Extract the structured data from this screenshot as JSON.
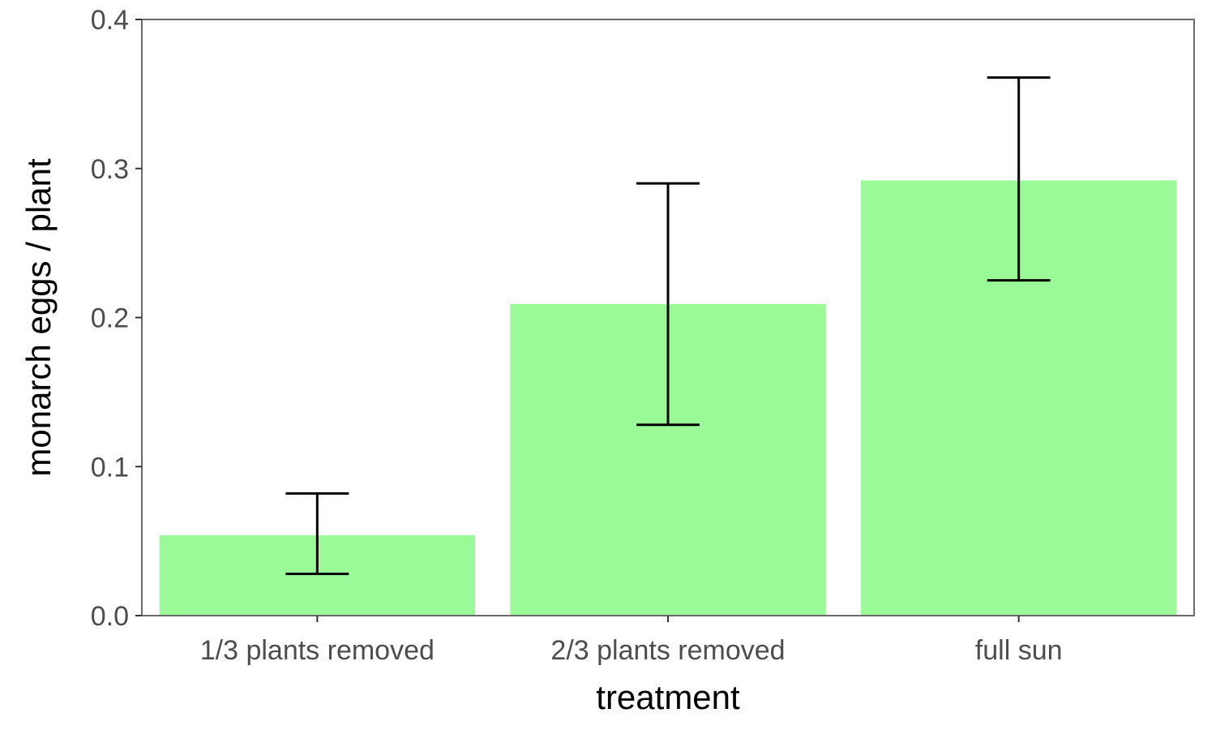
{
  "chart_data": {
    "type": "bar",
    "categories": [
      "1/3 plants removed",
      "2/3 plants removed",
      "full sun"
    ],
    "values": [
      0.054,
      0.209,
      0.292
    ],
    "error_bars": [
      {
        "lower": 0.028,
        "upper": 0.082
      },
      {
        "lower": 0.128,
        "upper": 0.29
      },
      {
        "lower": 0.225,
        "upper": 0.361
      }
    ],
    "xlabel": "treatment",
    "ylabel": "monarch eggs / plant",
    "ylim": [
      0,
      0.4
    ],
    "yticks": [
      "0.0",
      "0.1",
      "0.2",
      "0.3",
      "0.4"
    ],
    "grid": false,
    "bar_color": "#9AFA97",
    "error_bar_color": "#000000",
    "frame_color": "#6b6b6b"
  }
}
